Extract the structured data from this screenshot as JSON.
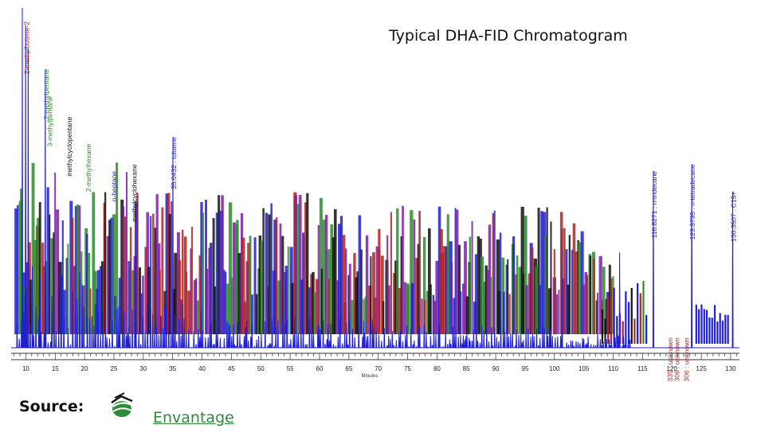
{
  "chart_data": {
    "type": "line",
    "title": "Typical DHA-FID Chromatogram",
    "xlabel": "Minutes",
    "ylabel": "",
    "xlim": [
      7,
      132
    ],
    "ylim": [
      0,
      100
    ],
    "x_ticks": [
      10,
      15,
      20,
      25,
      30,
      35,
      40,
      45,
      50,
      55,
      60,
      65,
      70,
      75,
      80,
      85,
      90,
      95,
      100,
      105,
      110,
      115,
      120,
      125,
      130
    ],
    "grid": false,
    "labeled_peaks": [
      {
        "label": "2-methylbutene-2",
        "x": 10.0,
        "y": 96,
        "color": "#b22222"
      },
      {
        "label": ":2-methylpentane",
        "x": 13.33,
        "y": 82,
        "color": "#2e8b2e"
      },
      {
        "label": "3-methylpentane",
        "x": 13.93,
        "y": 74,
        "color": "#2e8b2e"
      },
      {
        "label": "methylcyclopentane",
        "x": 17.3,
        "y": 68,
        "color": "#111111"
      },
      {
        "label": "2-methylhexane",
        "x": 20.5,
        "y": 60,
        "color": "#2e8b2e"
      },
      {
        "label": "n-heptane",
        "x": 24.9,
        "y": 52,
        "color": "#1f1fd0"
      },
      {
        "label": "methylcyclohexane",
        "x": 28.3,
        "y": 54,
        "color": "#111111"
      },
      {
        "label": "35.0432 : toluene",
        "x": 35.04,
        "y": 62,
        "color": "#1f1fd0"
      },
      {
        "label": "116.8271 : n-tridecane",
        "x": 116.83,
        "y": 52,
        "color": "#1f1fd0"
      },
      {
        "label": "123.3735 : n-tetradecane",
        "x": 123.37,
        "y": 54,
        "color": "#1f1fd0"
      },
      {
        "label": "130.3507 : C15+",
        "x": 130.35,
        "y": 46,
        "color": "#1f1fd0"
      },
      {
        "label": "119.5335 : unknown",
        "x": 119.53,
        "y": 3,
        "color": "#b22222"
      },
      {
        "label": "120.7306 : unknown",
        "x": 120.73,
        "y": 3,
        "color": "#b22222"
      },
      {
        "label": "122.3306 : unknown",
        "x": 122.33,
        "y": 3,
        "color": "#b22222"
      }
    ]
  },
  "source": {
    "label": "Source:",
    "link_text": "Envantage"
  },
  "colors": {
    "trace": "#1f1fd0",
    "label_red": "#b22222",
    "label_green": "#2e8b2e",
    "label_black": "#111111",
    "label_purple": "#7b1fa2",
    "link": "#2e8b3a"
  }
}
